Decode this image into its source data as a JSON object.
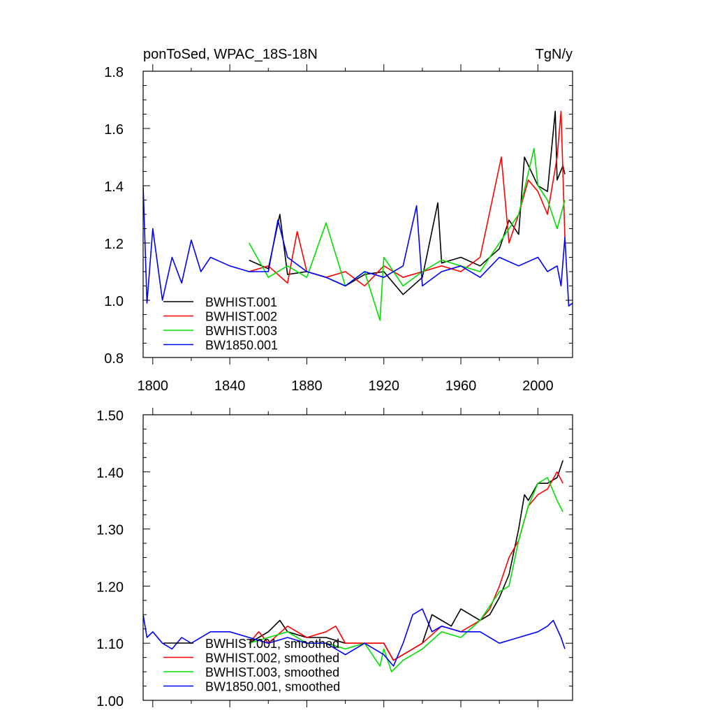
{
  "colors": {
    "black": "#000000",
    "red": "#ff0000",
    "green": "#00e000",
    "blue": "#0000ff"
  },
  "chart_data": [
    {
      "type": "line",
      "title": "ponToSed, WPAC_18S-18N",
      "units": "TgN/y",
      "xlim": [
        1795,
        2018
      ],
      "ylim": [
        0.8,
        1.8
      ],
      "x_ticks": [
        1800,
        1840,
        1880,
        1920,
        1960,
        2000
      ],
      "x_tick_labels": [
        "1800",
        "1840",
        "1880",
        "1920",
        "1960",
        "2000"
      ],
      "y_ticks": [
        0.8,
        1.0,
        1.2,
        1.4,
        1.6,
        1.8
      ],
      "y_tick_labels": [
        "0.8",
        "1.0",
        "1.2",
        "1.4",
        "1.6",
        "1.8"
      ],
      "legend_position": "bottom-left",
      "series": [
        {
          "name": "BWHIST.001",
          "color": "#000000",
          "x": [
            1850,
            1860,
            1866,
            1870,
            1880,
            1890,
            1900,
            1910,
            1920,
            1930,
            1940,
            1948,
            1950,
            1960,
            1970,
            1980,
            1985,
            1990,
            1993,
            2000,
            2005,
            2009,
            2010,
            2013,
            2014
          ],
          "values": [
            1.14,
            1.11,
            1.3,
            1.09,
            1.1,
            1.08,
            1.05,
            1.09,
            1.1,
            1.02,
            1.08,
            1.34,
            1.13,
            1.15,
            1.12,
            1.18,
            1.28,
            1.23,
            1.5,
            1.4,
            1.38,
            1.66,
            1.42,
            1.47,
            1.44
          ]
        },
        {
          "name": "BWHIST.002",
          "color": "#ff0000",
          "x": [
            1850,
            1860,
            1870,
            1875,
            1880,
            1890,
            1900,
            1910,
            1920,
            1930,
            1940,
            1950,
            1960,
            1970,
            1981,
            1985,
            1990,
            1995,
            2000,
            2005,
            2010,
            2012,
            2014
          ],
          "values": [
            1.1,
            1.12,
            1.06,
            1.24,
            1.1,
            1.08,
            1.1,
            1.05,
            1.12,
            1.08,
            1.1,
            1.12,
            1.1,
            1.15,
            1.5,
            1.2,
            1.3,
            1.42,
            1.38,
            1.3,
            1.5,
            1.66,
            1.22
          ]
        },
        {
          "name": "BWHIST.003",
          "color": "#00e000",
          "x": [
            1850,
            1860,
            1870,
            1880,
            1890,
            1900,
            1910,
            1918,
            1920,
            1930,
            1940,
            1950,
            1960,
            1970,
            1980,
            1990,
            1998,
            2000,
            2005,
            2010,
            2014
          ],
          "values": [
            1.2,
            1.08,
            1.12,
            1.08,
            1.27,
            1.05,
            1.1,
            0.93,
            1.15,
            1.05,
            1.1,
            1.14,
            1.12,
            1.1,
            1.2,
            1.3,
            1.53,
            1.4,
            1.35,
            1.25,
            1.35
          ]
        },
        {
          "name": "BW1850.001",
          "color": "#0000ff",
          "x": [
            1795,
            1797,
            1800,
            1805,
            1810,
            1815,
            1820,
            1825,
            1830,
            1840,
            1850,
            1860,
            1865,
            1870,
            1880,
            1890,
            1900,
            1910,
            1920,
            1930,
            1937,
            1940,
            1950,
            1960,
            1970,
            1980,
            1990,
            2000,
            2005,
            2010,
            2012,
            2014,
            2016,
            2018
          ],
          "values": [
            1.4,
            0.99,
            1.25,
            1.0,
            1.15,
            1.06,
            1.21,
            1.1,
            1.15,
            1.12,
            1.1,
            1.1,
            1.28,
            1.15,
            1.1,
            1.08,
            1.05,
            1.1,
            1.08,
            1.12,
            1.33,
            1.05,
            1.1,
            1.12,
            1.08,
            1.15,
            1.12,
            1.15,
            1.1,
            1.12,
            1.05,
            1.22,
            0.98,
            0.99
          ]
        }
      ]
    },
    {
      "type": "line",
      "title": "",
      "xlim": [
        1795,
        2018
      ],
      "ylim": [
        1.0,
        1.5
      ],
      "x_ticks": [
        1800,
        1840,
        1880,
        1920,
        1960,
        2000
      ],
      "y_ticks": [
        1.0,
        1.1,
        1.2,
        1.3,
        1.4,
        1.5
      ],
      "y_tick_labels": [
        "1.00",
        "1.10",
        "1.20",
        "1.30",
        "1.40",
        "1.50"
      ],
      "legend_position": "bottom-left",
      "series": [
        {
          "name": "BWHIST.001, smoothed",
          "color": "#000000",
          "x": [
            1850,
            1855,
            1860,
            1866,
            1870,
            1880,
            1890,
            1900,
            1910,
            1920,
            1925,
            1930,
            1940,
            1945,
            1950,
            1955,
            1960,
            1965,
            1970,
            1975,
            1980,
            1985,
            1990,
            1993,
            1995,
            2000,
            2005,
            2010,
            2013
          ],
          "values": [
            1.1,
            1.11,
            1.12,
            1.14,
            1.12,
            1.11,
            1.11,
            1.1,
            1.1,
            1.1,
            1.07,
            1.08,
            1.1,
            1.15,
            1.14,
            1.13,
            1.16,
            1.15,
            1.14,
            1.15,
            1.18,
            1.22,
            1.3,
            1.36,
            1.35,
            1.38,
            1.38,
            1.39,
            1.42
          ]
        },
        {
          "name": "BWHIST.002, smoothed",
          "color": "#ff0000",
          "x": [
            1850,
            1855,
            1860,
            1870,
            1880,
            1890,
            1895,
            1900,
            1910,
            1920,
            1925,
            1930,
            1940,
            1950,
            1960,
            1965,
            1970,
            1975,
            1980,
            1985,
            1990,
            1995,
            2000,
            2005,
            2010,
            2013
          ],
          "values": [
            1.1,
            1.12,
            1.1,
            1.13,
            1.11,
            1.12,
            1.13,
            1.1,
            1.1,
            1.1,
            1.07,
            1.08,
            1.1,
            1.13,
            1.12,
            1.13,
            1.14,
            1.16,
            1.2,
            1.25,
            1.28,
            1.34,
            1.36,
            1.37,
            1.4,
            1.38
          ]
        },
        {
          "name": "BWHIST.003, smoothed",
          "color": "#00e000",
          "x": [
            1850,
            1860,
            1870,
            1880,
            1890,
            1900,
            1910,
            1918,
            1920,
            1924,
            1930,
            1940,
            1950,
            1960,
            1970,
            1980,
            1985,
            1990,
            1995,
            2000,
            2005,
            2010,
            2013
          ],
          "values": [
            1.1,
            1.11,
            1.12,
            1.1,
            1.1,
            1.09,
            1.1,
            1.06,
            1.09,
            1.05,
            1.07,
            1.09,
            1.12,
            1.11,
            1.14,
            1.19,
            1.2,
            1.28,
            1.34,
            1.38,
            1.39,
            1.35,
            1.33
          ]
        },
        {
          "name": "BW1850.001, smoothed",
          "color": "#0000ff",
          "x": [
            1795,
            1797,
            1800,
            1805,
            1810,
            1815,
            1820,
            1830,
            1840,
            1850,
            1860,
            1870,
            1880,
            1890,
            1900,
            1910,
            1920,
            1925,
            1930,
            1935,
            1940,
            1945,
            1950,
            1960,
            1970,
            1980,
            1990,
            2000,
            2005,
            2008,
            2012,
            2014
          ],
          "values": [
            1.15,
            1.11,
            1.12,
            1.1,
            1.09,
            1.11,
            1.1,
            1.12,
            1.12,
            1.11,
            1.1,
            1.11,
            1.1,
            1.1,
            1.08,
            1.1,
            1.08,
            1.06,
            1.1,
            1.15,
            1.16,
            1.12,
            1.13,
            1.12,
            1.12,
            1.1,
            1.11,
            1.12,
            1.13,
            1.14,
            1.11,
            1.09
          ]
        }
      ]
    }
  ]
}
